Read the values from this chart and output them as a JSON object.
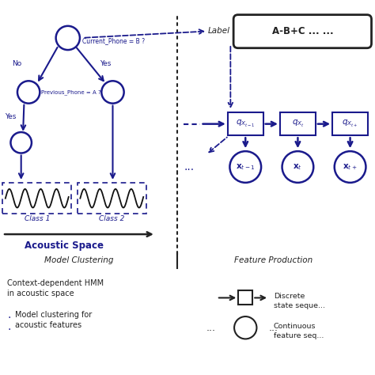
{
  "bg_color": "#ffffff",
  "blue": "#1a1a8c",
  "black": "#222222",
  "label_text": "A-B+C ... ...",
  "label_italic": "Label",
  "model_clustering_text": "Model Clustering",
  "feature_production_text": "Feature Production",
  "legend_hmm": "Context-dependent HMM\nin acoustic space",
  "legend_model": "Model clustering for\nacoustic features",
  "legend_discrete": "Discrete\nstate seque...",
  "legend_continuous": "Continuous\nfeature seq...",
  "acoustic_space_text": "Acoustic Space",
  "node_q_labels": [
    "$q_{X_{t-1}}$",
    "$q_{X_t}$",
    "$q_{X_{t+}}$"
  ],
  "obs_labels": [
    "$\\mathbf{x}_{t-1}$",
    "$\\mathbf{x}_{t}$",
    "$\\mathbf{x}_{t+}$"
  ]
}
